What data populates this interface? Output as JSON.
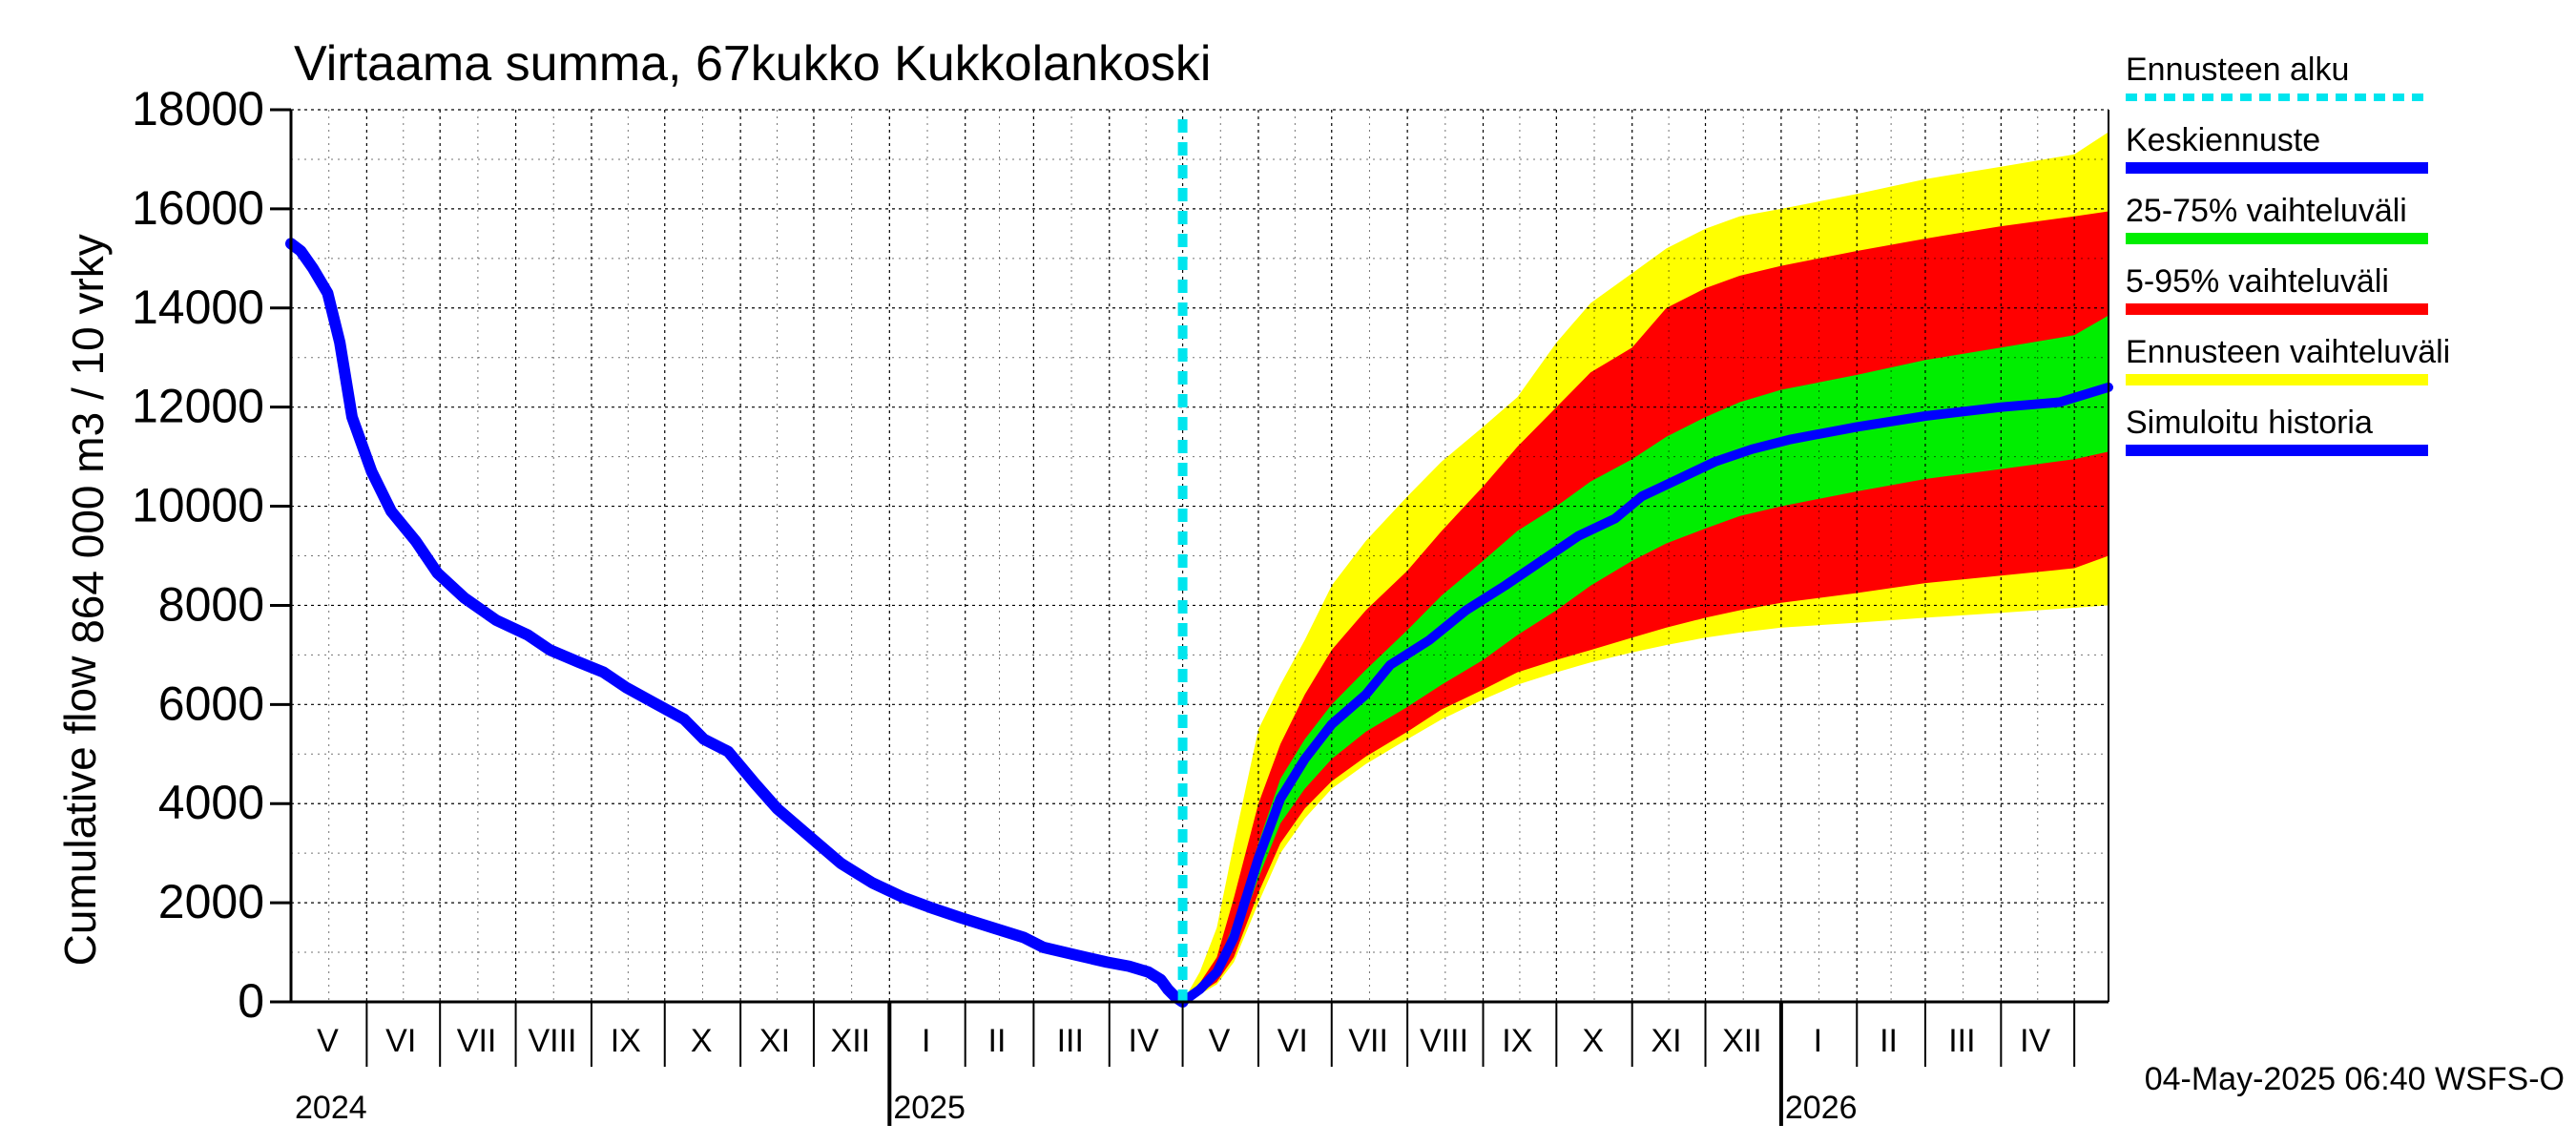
{
  "chart_data": {
    "type": "area",
    "title": "Virtaama summa, 67kukko Kukkolankoski",
    "ylabel_line1": "864 000 m3 / 10 vrky",
    "ylabel_line2": "Cumulative flow",
    "ylim": [
      0,
      18000
    ],
    "yticks": [
      0,
      2000,
      4000,
      6000,
      8000,
      10000,
      12000,
      14000,
      16000,
      18000
    ],
    "xlim": [
      "2024-05-01",
      "2026-05-15"
    ],
    "grid": true,
    "legend_position": "right",
    "month_labels": [
      {
        "label": "V",
        "date": "2024-05-16"
      },
      {
        "label": "VI",
        "date": "2024-06-15"
      },
      {
        "label": "VII",
        "date": "2024-07-16"
      },
      {
        "label": "VIII",
        "date": "2024-08-16"
      },
      {
        "label": "IX",
        "date": "2024-09-15"
      },
      {
        "label": "X",
        "date": "2024-10-16"
      },
      {
        "label": "XI",
        "date": "2024-11-15"
      },
      {
        "label": "XII",
        "date": "2024-12-16"
      },
      {
        "label": "I",
        "date": "2025-01-16"
      },
      {
        "label": "II",
        "date": "2025-02-14"
      },
      {
        "label": "III",
        "date": "2025-03-16"
      },
      {
        "label": "IV",
        "date": "2025-04-15"
      },
      {
        "label": "V",
        "date": "2025-05-16"
      },
      {
        "label": "VI",
        "date": "2025-06-15"
      },
      {
        "label": "VII",
        "date": "2025-07-16"
      },
      {
        "label": "VIII",
        "date": "2025-08-16"
      },
      {
        "label": "IX",
        "date": "2025-09-15"
      },
      {
        "label": "X",
        "date": "2025-10-16"
      },
      {
        "label": "XI",
        "date": "2025-11-15"
      },
      {
        "label": "XII",
        "date": "2025-12-16"
      },
      {
        "label": "I",
        "date": "2026-01-16"
      },
      {
        "label": "II",
        "date": "2026-02-14"
      },
      {
        "label": "III",
        "date": "2026-03-16"
      },
      {
        "label": "IV",
        "date": "2026-04-15"
      }
    ],
    "month_boundaries": [
      "2024-06-01",
      "2024-07-01",
      "2024-08-01",
      "2024-09-01",
      "2024-10-01",
      "2024-11-01",
      "2024-12-01",
      "2025-01-01",
      "2025-02-01",
      "2025-03-01",
      "2025-04-01",
      "2025-05-01",
      "2025-06-01",
      "2025-07-01",
      "2025-08-01",
      "2025-09-01",
      "2025-10-01",
      "2025-11-01",
      "2025-12-01",
      "2026-01-01",
      "2026-02-01",
      "2026-03-01",
      "2026-04-01",
      "2026-05-01"
    ],
    "year_labels": [
      {
        "label": "2024",
        "date": "2024-05-01"
      },
      {
        "label": "2025",
        "date": "2025-01-01"
      },
      {
        "label": "2026",
        "date": "2026-01-01"
      }
    ],
    "forecast_start": "2025-05-01",
    "footer": "04-May-2025 06:40 WSFS-O",
    "series": [
      {
        "name": "Ennusteen alku",
        "kind": "vline",
        "color": "#00e5ee"
      },
      {
        "name": "Keskiennuste",
        "kind": "line",
        "color": "#0000ff",
        "points": [
          [
            "2025-05-01",
            0
          ],
          [
            "2025-05-08",
            250
          ],
          [
            "2025-05-15",
            600
          ],
          [
            "2025-05-22",
            1300
          ],
          [
            "2025-06-01",
            2900
          ],
          [
            "2025-06-10",
            4100
          ],
          [
            "2025-06-20",
            4900
          ],
          [
            "2025-07-01",
            5600
          ],
          [
            "2025-07-15",
            6200
          ],
          [
            "2025-07-25",
            6800
          ],
          [
            "2025-08-10",
            7300
          ],
          [
            "2025-08-25",
            7900
          ],
          [
            "2025-09-10",
            8400
          ],
          [
            "2025-09-25",
            8900
          ],
          [
            "2025-10-10",
            9400
          ],
          [
            "2025-10-25",
            9750
          ],
          [
            "2025-11-05",
            10200
          ],
          [
            "2025-11-20",
            10550
          ],
          [
            "2025-12-05",
            10900
          ],
          [
            "2025-12-20",
            11150
          ],
          [
            "2026-01-05",
            11350
          ],
          [
            "2026-02-01",
            11600
          ],
          [
            "2026-03-01",
            11820
          ],
          [
            "2026-04-01",
            12000
          ],
          [
            "2026-04-25",
            12100
          ],
          [
            "2026-05-15",
            12400
          ]
        ]
      },
      {
        "name": "25-75% vaihteluväli",
        "kind": "band",
        "color": "#00ee00",
        "dates": [
          "2025-05-01",
          "2025-05-08",
          "2025-05-15",
          "2025-05-22",
          "2025-06-01",
          "2025-06-10",
          "2025-06-20",
          "2025-07-01",
          "2025-07-15",
          "2025-08-01",
          "2025-08-15",
          "2025-09-01",
          "2025-09-15",
          "2025-10-01",
          "2025-10-15",
          "2025-11-01",
          "2025-11-15",
          "2025-12-01",
          "2025-12-15",
          "2026-01-01",
          "2026-02-01",
          "2026-03-01",
          "2026-04-01",
          "2026-05-01",
          "2026-05-15"
        ],
        "lower": [
          0,
          220,
          500,
          1100,
          2500,
          3600,
          4300,
          4900,
          5450,
          5950,
          6400,
          6900,
          7400,
          7900,
          8400,
          8900,
          9250,
          9550,
          9800,
          10000,
          10300,
          10550,
          10750,
          10950,
          11100
        ],
        "upper": [
          0,
          300,
          700,
          1600,
          3200,
          4500,
          5300,
          6000,
          6700,
          7500,
          8200,
          8900,
          9500,
          10000,
          10500,
          10950,
          11400,
          11800,
          12100,
          12350,
          12650,
          12950,
          13200,
          13450,
          13850
        ]
      },
      {
        "name": "5-95% vaihteluväli",
        "kind": "band",
        "color": "#ff0000",
        "dates": [
          "2025-05-01",
          "2025-05-08",
          "2025-05-15",
          "2025-05-22",
          "2025-06-01",
          "2025-06-10",
          "2025-06-20",
          "2025-07-01",
          "2025-07-15",
          "2025-08-01",
          "2025-08-15",
          "2025-09-01",
          "2025-09-15",
          "2025-10-01",
          "2025-10-15",
          "2025-11-01",
          "2025-11-15",
          "2025-12-01",
          "2025-12-15",
          "2026-01-01",
          "2026-02-01",
          "2026-03-01",
          "2026-04-01",
          "2026-05-01",
          "2026-05-15"
        ],
        "lower": [
          0,
          180,
          400,
          900,
          2200,
          3200,
          3900,
          4450,
          4950,
          5450,
          5900,
          6300,
          6650,
          6900,
          7100,
          7350,
          7550,
          7750,
          7900,
          8050,
          8250,
          8450,
          8600,
          8750,
          9000
        ],
        "upper": [
          0,
          380,
          900,
          2100,
          4000,
          5200,
          6200,
          7100,
          7900,
          8700,
          9500,
          10400,
          11200,
          12000,
          12700,
          13200,
          14000,
          14400,
          14650,
          14850,
          15150,
          15400,
          15650,
          15850,
          15950
        ]
      },
      {
        "name": "Ennusteen vaihteluväli",
        "kind": "band",
        "color": "#ffff00",
        "dates": [
          "2025-05-01",
          "2025-05-08",
          "2025-05-15",
          "2025-05-22",
          "2025-06-01",
          "2025-06-10",
          "2025-06-20",
          "2025-07-01",
          "2025-07-15",
          "2025-08-01",
          "2025-08-15",
          "2025-09-01",
          "2025-09-15",
          "2025-10-01",
          "2025-10-15",
          "2025-11-01",
          "2025-11-15",
          "2025-12-01",
          "2025-12-15",
          "2026-01-01",
          "2026-02-01",
          "2026-03-01",
          "2026-04-01",
          "2026-05-01",
          "2026-05-15"
        ],
        "lower": [
          0,
          150,
          350,
          800,
          2000,
          3000,
          3700,
          4300,
          4800,
          5300,
          5700,
          6100,
          6400,
          6650,
          6850,
          7050,
          7200,
          7350,
          7450,
          7550,
          7650,
          7750,
          7850,
          7950,
          8000
        ],
        "upper": [
          0,
          600,
          1500,
          3200,
          5500,
          6400,
          7300,
          8400,
          9300,
          10200,
          10900,
          11600,
          12200,
          13300,
          14100,
          14700,
          15200,
          15600,
          15850,
          16000,
          16300,
          16600,
          16850,
          17100,
          17550
        ]
      },
      {
        "name": "Simuloitu historia",
        "kind": "line",
        "color": "#0000ff",
        "points": [
          [
            "2024-05-01",
            15300
          ],
          [
            "2024-05-06",
            15150
          ],
          [
            "2024-05-12",
            14800
          ],
          [
            "2024-05-20",
            14300
          ],
          [
            "2024-05-25",
            13300
          ],
          [
            "2024-06-01",
            11800
          ],
          [
            "2024-06-10",
            10700
          ],
          [
            "2024-06-20",
            9900
          ],
          [
            "2024-07-01",
            9300
          ],
          [
            "2024-07-12",
            8650
          ],
          [
            "2024-07-25",
            8150
          ],
          [
            "2024-08-10",
            7700
          ],
          [
            "2024-08-25",
            7400
          ],
          [
            "2024-09-05",
            7100
          ],
          [
            "2024-09-20",
            6850
          ],
          [
            "2024-10-01",
            6650
          ],
          [
            "2024-10-12",
            6350
          ],
          [
            "2024-10-25",
            6050
          ],
          [
            "2024-11-10",
            5700
          ],
          [
            "2024-11-20",
            5300
          ],
          [
            "2024-12-01",
            5050
          ],
          [
            "2024-12-15",
            4400
          ],
          [
            "2024-12-25",
            3900
          ],
          [
            "2025-01-10",
            3350
          ],
          [
            "2025-01-25",
            2800
          ],
          [
            "2025-02-10",
            2400
          ],
          [
            "2025-02-25",
            2100
          ],
          [
            "2025-03-10",
            1900
          ],
          [
            "2025-03-25",
            1700
          ],
          [
            "2025-04-10",
            1500
          ],
          [
            "2025-04-25",
            1300
          ],
          [
            "2025-05-05",
            1100
          ],
          [
            "2025-05-20",
            950
          ],
          [
            "2025-06-05",
            800
          ],
          [
            "2025-06-15",
            720
          ],
          [
            "2025-06-25",
            600
          ],
          [
            "2025-07-01",
            450
          ],
          [
            "2025-07-05",
            250
          ],
          [
            "2025-07-08",
            100
          ],
          [
            "2025-07-11",
            0
          ]
        ]
      }
    ]
  }
}
